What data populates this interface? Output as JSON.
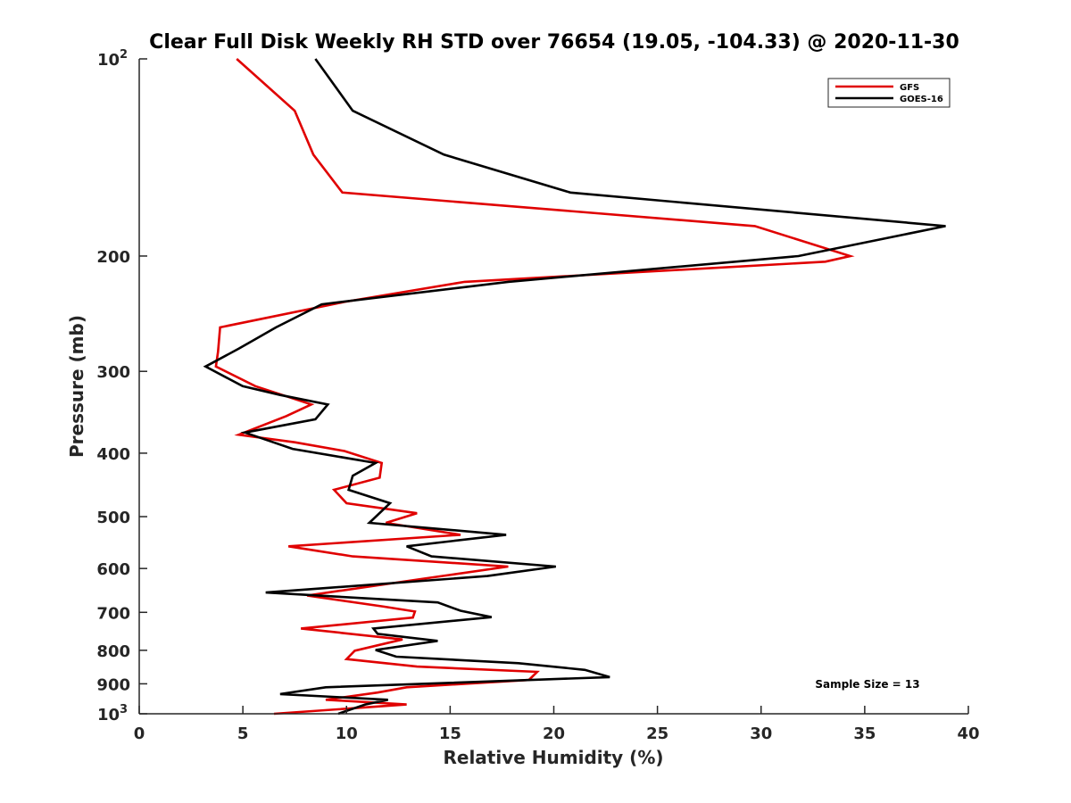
{
  "chart_data": {
    "type": "line",
    "title": "Clear Full Disk Weekly RH STD over 76654 (19.05, -104.33) @ 2020-11-30",
    "xlabel": "Relative Humidity (%)",
    "ylabel": "Pressure (mb)",
    "xlim": [
      0,
      40
    ],
    "ylim": [
      100,
      1000
    ],
    "yscale": "log",
    "yreversed": true,
    "grid": false,
    "x_ticks": [
      {
        "value": 0,
        "label": "0"
      },
      {
        "value": 5,
        "label": "5"
      },
      {
        "value": 10,
        "label": "10"
      },
      {
        "value": 15,
        "label": "15"
      },
      {
        "value": 20,
        "label": "20"
      },
      {
        "value": 25,
        "label": "25"
      },
      {
        "value": 30,
        "label": "30"
      },
      {
        "value": 35,
        "label": "35"
      },
      {
        "value": 40,
        "label": "40"
      }
    ],
    "y_ticks": [
      {
        "value": 100,
        "label": "10",
        "sup": "2"
      },
      {
        "value": 200,
        "label": "200",
        "sup": ""
      },
      {
        "value": 300,
        "label": "300",
        "sup": ""
      },
      {
        "value": 400,
        "label": "400",
        "sup": ""
      },
      {
        "value": 500,
        "label": "500",
        "sup": ""
      },
      {
        "value": 600,
        "label": "600",
        "sup": ""
      },
      {
        "value": 700,
        "label": "700",
        "sup": ""
      },
      {
        "value": 800,
        "label": "800",
        "sup": ""
      },
      {
        "value": 900,
        "label": "900",
        "sup": ""
      },
      {
        "value": 1000,
        "label": "10",
        "sup": "3"
      }
    ],
    "legend": {
      "position": "top-right"
    },
    "annotation": "Sample Size = 13",
    "series": [
      {
        "name": "GFS",
        "color": "#e00000",
        "rh": [
          4.7,
          7.5,
          8.4,
          9.8,
          29.7,
          34.3,
          33.1,
          15.7,
          9.9,
          3.9,
          3.8,
          3.7,
          5.6,
          8.3,
          7.1,
          4.8,
          7.5,
          9.9,
          11.7,
          11.6,
          9.4,
          10.0,
          13.4,
          11.9,
          15.5,
          7.2,
          10.3,
          17.8,
          13.7,
          8.1,
          11.8,
          13.3,
          13.2,
          7.8,
          12.7,
          10.4,
          10.0,
          13.4,
          19.2,
          18.8,
          12.9,
          11.5,
          9.0,
          12.9,
          6.5
        ],
        "pressure": [
          100,
          120,
          140,
          160,
          180,
          200,
          204,
          219,
          235,
          257,
          280,
          295,
          316,
          337,
          351,
          375,
          385,
          397,
          414,
          436,
          455,
          477,
          494,
          511,
          533,
          555,
          575,
          596,
          622,
          660,
          686,
          698,
          713,
          741,
          770,
          801,
          825,
          847,
          863,
          888,
          911,
          928,
          952,
          968,
          1000
        ]
      },
      {
        "name": "GOES-16",
        "color": "#000000",
        "rh": [
          8.5,
          10.3,
          14.7,
          20.8,
          38.9,
          31.8,
          17.8,
          8.8,
          6.6,
          4.8,
          3.2,
          4.99,
          6.8,
          9.1,
          8.5,
          5.1,
          7.4,
          11.4,
          10.3,
          10.1,
          12.1,
          11.1,
          17.7,
          12.9,
          14.1,
          20.1,
          16.8,
          6.1,
          14.4,
          15.5,
          17.0,
          11.3,
          11.5,
          14.4,
          11.4,
          12.4,
          18.3,
          21.5,
          22.7,
          9.0,
          6.8,
          12.0,
          10.9,
          9.6
        ],
        "pressure": [
          100,
          120,
          140,
          160,
          180,
          200,
          219,
          237,
          257,
          277,
          295,
          316,
          326,
          337,
          355,
          372,
          394,
          414,
          433,
          455,
          477,
          511,
          533,
          555,
          575,
          596,
          616,
          653,
          676,
          696,
          712,
          741,
          755,
          774,
          799,
          818,
          837,
          857,
          879,
          911,
          933,
          952,
          968,
          1000
        ]
      }
    ]
  }
}
